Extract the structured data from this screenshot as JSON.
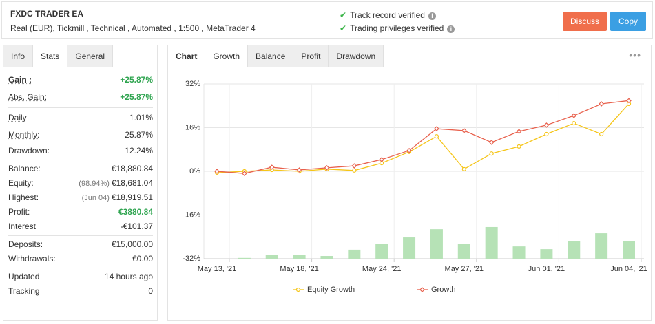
{
  "header": {
    "title": "FXDC TRADER EA",
    "account": [
      "Real (EUR),",
      "Tickmill",
      ", Technical , Automated , 1:500 , MetaTrader 4"
    ],
    "verified": [
      "Track record verified",
      "Trading privileges verified"
    ],
    "buttons": [
      "Discuss",
      "Copy"
    ]
  },
  "left_tabs": {
    "items": [
      "Info",
      "Stats",
      "General"
    ],
    "active": 1
  },
  "stats": [
    [
      {
        "label": "Gain :",
        "value": "+25.87%",
        "color": "#2ea44f",
        "tooltip": true,
        "bold": true
      },
      {
        "label": "Abs. Gain:",
        "value": "+25.87%",
        "color": "#2ea44f",
        "tooltip": true
      }
    ],
    [
      {
        "label": "Daily",
        "value": "1.01%",
        "tooltip": true
      },
      {
        "label": "Monthly:",
        "value": "25.87%",
        "tooltip": true
      },
      {
        "label": "Drawdown:",
        "value": "12.24%"
      }
    ],
    [
      {
        "label": "Balance:",
        "value": "€18,880.84"
      },
      {
        "label": "Equity:",
        "note": "(98.94%)",
        "value": "€18,681.04"
      },
      {
        "label": "Highest:",
        "note": "(Jun 04)",
        "value": "€18,919.51"
      },
      {
        "label": "Profit:",
        "value": "€3880.84",
        "color": "#2ea44f"
      },
      {
        "label": "Interest",
        "value": "-€101.37"
      }
    ],
    [
      {
        "label": "Deposits:",
        "value": "€15,000.00"
      },
      {
        "label": "Withdrawals:",
        "value": "€0.00"
      }
    ],
    [
      {
        "label": "Updated",
        "value": "14 hours ago"
      },
      {
        "label": "Tracking",
        "value": "0"
      }
    ]
  ],
  "chart_tabs": {
    "items": [
      "Chart",
      "Growth",
      "Balance",
      "Profit",
      "Drawdown"
    ],
    "active": 1
  },
  "chart_data": {
    "type": "line",
    "categories": [
      "May 13, '21",
      null,
      null,
      "May 18, '21",
      null,
      null,
      "May 24, '21",
      null,
      null,
      "May 27, '21",
      null,
      null,
      "Jun 01, '21",
      null,
      null,
      "Jun 04, '21"
    ],
    "series": [
      {
        "name": "Equity Growth",
        "color": "#f5c518",
        "marker": "circle",
        "values": [
          -0.5,
          0,
          0.5,
          0,
          0.8,
          0.3,
          3.0,
          7.1,
          12.8,
          0.8,
          6.5,
          9.1,
          13.6,
          17.6,
          13.6,
          24.7
        ]
      },
      {
        "name": "Growth",
        "color": "#e8604c",
        "marker": "diamond",
        "values": [
          0,
          -0.8,
          1.5,
          0.5,
          1.3,
          2.0,
          4.3,
          7.6,
          15.6,
          14.9,
          10.6,
          14.6,
          16.9,
          20.4,
          24.7,
          25.87
        ]
      },
      {
        "type": "bar",
        "color": "#b6e2b6",
        "values": [
          null,
          -31.7,
          -30.7,
          -30.7,
          -31.0,
          -28.7,
          -26.7,
          -24.2,
          -21.2,
          -26.7,
          -20.4,
          -27.5,
          -28.5,
          -25.7,
          -22.7,
          -25.7
        ]
      }
    ],
    "ylim": [
      -32,
      32
    ],
    "yticks": [
      {
        "value": 32,
        "label": "32%"
      },
      {
        "value": 16,
        "label": "16%"
      },
      {
        "value": 0,
        "label": "0%"
      },
      {
        "value": -16,
        "label": "-16%"
      },
      {
        "value": -32,
        "label": "-32%"
      }
    ],
    "grid": true
  }
}
